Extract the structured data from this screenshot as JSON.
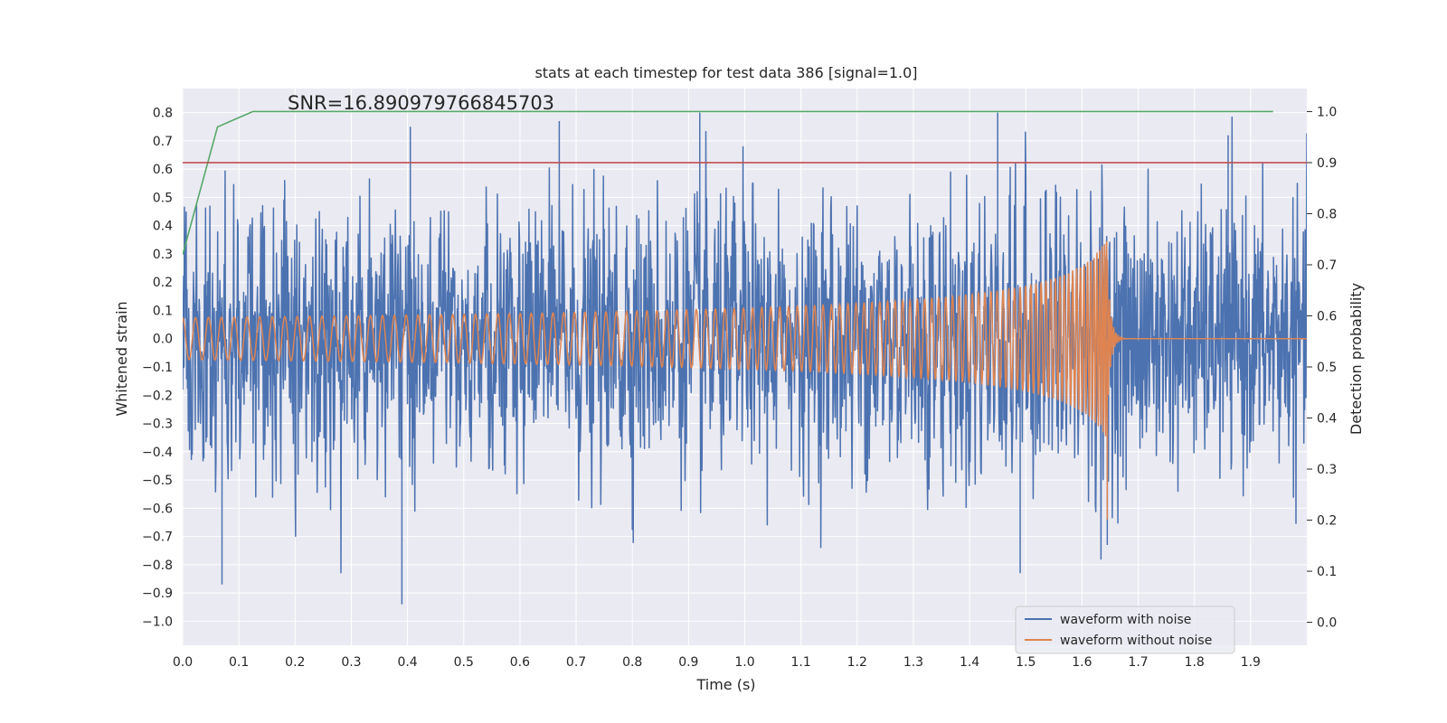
{
  "chart_data": {
    "type": "line",
    "title": "stats at each timestep for test data 386 [signal=1.0]",
    "annotation": "SNR=16.890979766845703",
    "xlabel": "Time (s)",
    "ylabel": "Whitened strain",
    "y2label": "Detection probability",
    "xlim": [
      0.0,
      2.0
    ],
    "ylim": [
      -1.085,
      0.885
    ],
    "y2lim": [
      -0.045,
      1.045
    ],
    "xticks": [
      "0.0",
      "0.1",
      "0.2",
      "0.3",
      "0.4",
      "0.5",
      "0.6",
      "0.7",
      "0.8",
      "0.9",
      "1.0",
      "1.1",
      "1.2",
      "1.3",
      "1.4",
      "1.5",
      "1.6",
      "1.7",
      "1.8",
      "1.9"
    ],
    "yticks": [
      "0.8",
      "0.7",
      "0.6",
      "0.5",
      "0.4",
      "0.3",
      "0.2",
      "0.1",
      "0.0",
      "−0.1",
      "−0.2",
      "−0.3",
      "−0.4",
      "−0.5",
      "−0.6",
      "−0.7",
      "−0.8",
      "−0.9",
      "−1.0"
    ],
    "y2ticks": [
      "1.0",
      "0.9",
      "0.8",
      "0.7",
      "0.6",
      "0.5",
      "0.4",
      "0.3",
      "0.2",
      "0.1",
      "0.0"
    ],
    "grid": true,
    "legend_position": "lower right",
    "colors": {
      "background": "#eaeaf2",
      "grid": "#ffffff",
      "noisy": "#4c72b0",
      "clean": "#dd8452",
      "probability": "#55a868",
      "threshold": "#c44e52"
    },
    "series": [
      {
        "name": "waveform with noise",
        "axis": "left",
        "x_range": [
          0.0,
          2.0
        ],
        "min": -0.94,
        "max": 0.8,
        "notable_peaks": [
          {
            "x": 0.07,
            "y": -0.87
          },
          {
            "x": 0.39,
            "y": -0.94
          },
          {
            "x": 0.405,
            "y": 0.75
          },
          {
            "x": 0.67,
            "y": 0.77
          },
          {
            "x": 0.92,
            "y": 0.8
          },
          {
            "x": 1.45,
            "y": 0.8
          },
          {
            "x": 1.49,
            "y": -0.83
          },
          {
            "x": 1.645,
            "y": -0.73
          },
          {
            "x": 1.86,
            "y": 0.72
          }
        ]
      },
      {
        "name": "waveform without noise",
        "axis": "left",
        "x_range": [
          0.0,
          2.0
        ],
        "merger_time": 1.645,
        "min": -0.64,
        "max": 0.35
      },
      {
        "axis": "right",
        "x": [
          0.0,
          0.062,
          0.125,
          0.25,
          0.5,
          0.75,
          1.0,
          1.25,
          1.5,
          1.75,
          1.94
        ],
        "y": [
          0.72,
          0.97,
          1.0,
          1.0,
          1.0,
          1.0,
          1.0,
          1.0,
          1.0,
          1.0,
          1.0
        ]
      },
      {
        "axis": "right",
        "type": "hline",
        "y": 0.9
      }
    ]
  }
}
